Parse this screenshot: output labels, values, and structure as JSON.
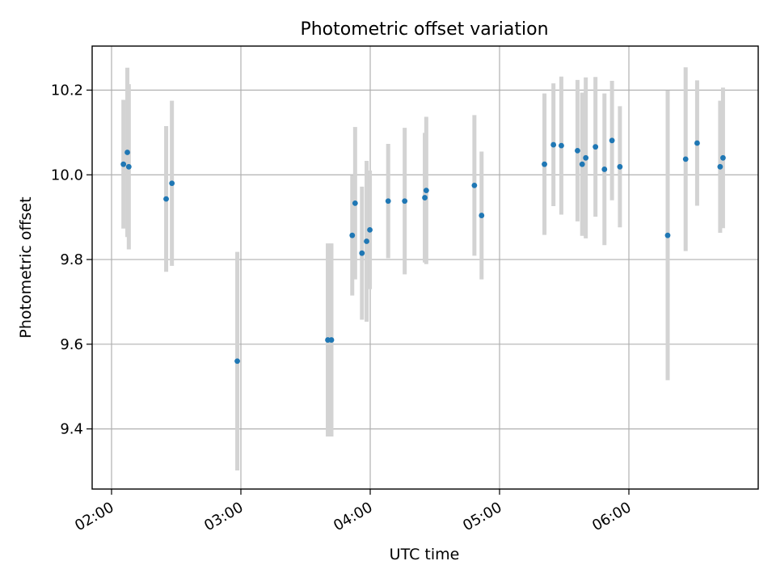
{
  "chart_data": {
    "type": "scatter",
    "title": "Photometric offset variation",
    "xlabel": "UTC time",
    "ylabel": "Photometric offset",
    "x_ticks": [
      "02:00",
      "03:00",
      "04:00",
      "05:00",
      "06:00"
    ],
    "y_ticks": [
      "9.4",
      "9.6",
      "9.8",
      "10.0",
      "10.2"
    ],
    "xlim": [
      "01:51",
      "07:00"
    ],
    "ylim": [
      9.258,
      10.304
    ],
    "grid": true,
    "colors": {
      "point": "#1f77b4",
      "errorbar": "#d3d3d3",
      "grid": "#b0b0b0"
    },
    "points": [
      {
        "x": "02:05:30",
        "y": 10.025,
        "err": 0.152
      },
      {
        "x": "02:07:20",
        "y": 10.053,
        "err": 0.2
      },
      {
        "x": "02:08:00",
        "y": 10.019,
        "err": 0.195
      },
      {
        "x": "02:25:20",
        "y": 9.943,
        "err": 0.172
      },
      {
        "x": "02:28:00",
        "y": 9.98,
        "err": 0.195
      },
      {
        "x": "02:58:20",
        "y": 9.56,
        "err": 0.258
      },
      {
        "x": "03:40:20",
        "y": 9.61,
        "err": 0.228
      },
      {
        "x": "03:42:00",
        "y": 9.61,
        "err": 0.228
      },
      {
        "x": "03:51:40",
        "y": 9.857,
        "err": 0.142
      },
      {
        "x": "03:53:00",
        "y": 9.933,
        "err": 0.18
      },
      {
        "x": "03:56:10",
        "y": 9.815,
        "err": 0.157
      },
      {
        "x": "03:58:20",
        "y": 9.843,
        "err": 0.19
      },
      {
        "x": "03:59:50",
        "y": 9.87,
        "err": 0.14
      },
      {
        "x": "04:08:20",
        "y": 9.938,
        "err": 0.135
      },
      {
        "x": "04:16:00",
        "y": 9.938,
        "err": 0.173
      },
      {
        "x": "04:25:20",
        "y": 9.946,
        "err": 0.153
      },
      {
        "x": "04:26:00",
        "y": 9.963,
        "err": 0.174
      },
      {
        "x": "04:48:20",
        "y": 9.975,
        "err": 0.166
      },
      {
        "x": "04:51:40",
        "y": 9.904,
        "err": 0.151
      },
      {
        "x": "05:20:50",
        "y": 10.025,
        "err": 0.167
      },
      {
        "x": "05:25:00",
        "y": 10.071,
        "err": 0.145
      },
      {
        "x": "05:28:40",
        "y": 10.069,
        "err": 0.163
      },
      {
        "x": "05:36:10",
        "y": 10.057,
        "err": 0.167
      },
      {
        "x": "05:38:20",
        "y": 10.025,
        "err": 0.169
      },
      {
        "x": "05:40:00",
        "y": 10.04,
        "err": 0.19
      },
      {
        "x": "05:44:30",
        "y": 10.066,
        "err": 0.165
      },
      {
        "x": "05:48:40",
        "y": 10.013,
        "err": 0.179
      },
      {
        "x": "05:52:10",
        "y": 10.081,
        "err": 0.141
      },
      {
        "x": "05:55:50",
        "y": 10.019,
        "err": 0.143
      },
      {
        "x": "06:18:00",
        "y": 9.857,
        "err": 0.342
      },
      {
        "x": "06:26:20",
        "y": 10.037,
        "err": 0.217
      },
      {
        "x": "06:31:40",
        "y": 10.075,
        "err": 0.148
      },
      {
        "x": "06:42:20",
        "y": 10.019,
        "err": 0.156
      },
      {
        "x": "06:43:40",
        "y": 10.04,
        "err": 0.166
      }
    ]
  }
}
